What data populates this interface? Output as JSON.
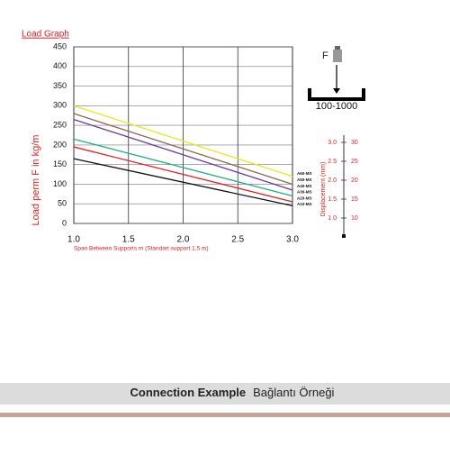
{
  "chart_data": {
    "type": "line",
    "title": "Load Graph",
    "y_label": "Load perm F in kg/m",
    "x_label": "Span Between Supports m (Standart support 1.5 m)",
    "x": [
      1.0,
      3.0
    ],
    "xlim": [
      1.0,
      3.0
    ],
    "xticks": [
      {
        "value": 1.0,
        "label": "1.0"
      },
      1.5,
      {
        "value": 2.0,
        "label": "2.0"
      },
      2.5,
      {
        "value": 3.0,
        "label": "3.0"
      }
    ],
    "ylim": [
      0,
      450
    ],
    "yticks": [
      0,
      50,
      100,
      150,
      200,
      250,
      300,
      350,
      400,
      450
    ],
    "grid": true,
    "series": [
      {
        "name": "A60-MS",
        "color": "#e8e820",
        "values": [
          300,
          120
        ]
      },
      {
        "name": "A50-MS",
        "color": "#8b6a4a",
        "values": [
          280,
          100
        ]
      },
      {
        "name": "A40-MS",
        "color": "#6a3aa0",
        "values": [
          265,
          85
        ]
      },
      {
        "name": "A30-MS",
        "color": "#20b080",
        "values": [
          215,
          70
        ]
      },
      {
        "name": "A20-MS",
        "color": "#e02020",
        "values": [
          195,
          55
        ]
      },
      {
        "name": "A10-MS",
        "color": "#111111",
        "values": [
          165,
          45
        ]
      }
    ]
  },
  "diagram": {
    "force": "F",
    "range": "100-1000",
    "scale_label": "Displacement (mm)",
    "left_ticks": [
      "3.0",
      "2.5",
      "2.0",
      "1.5",
      "1.0"
    ],
    "right_ticks": [
      "30",
      "25",
      "20",
      "15",
      "10"
    ]
  },
  "footer": {
    "title": "Connection Example",
    "subtitle": "Bağlantı Örneği"
  }
}
